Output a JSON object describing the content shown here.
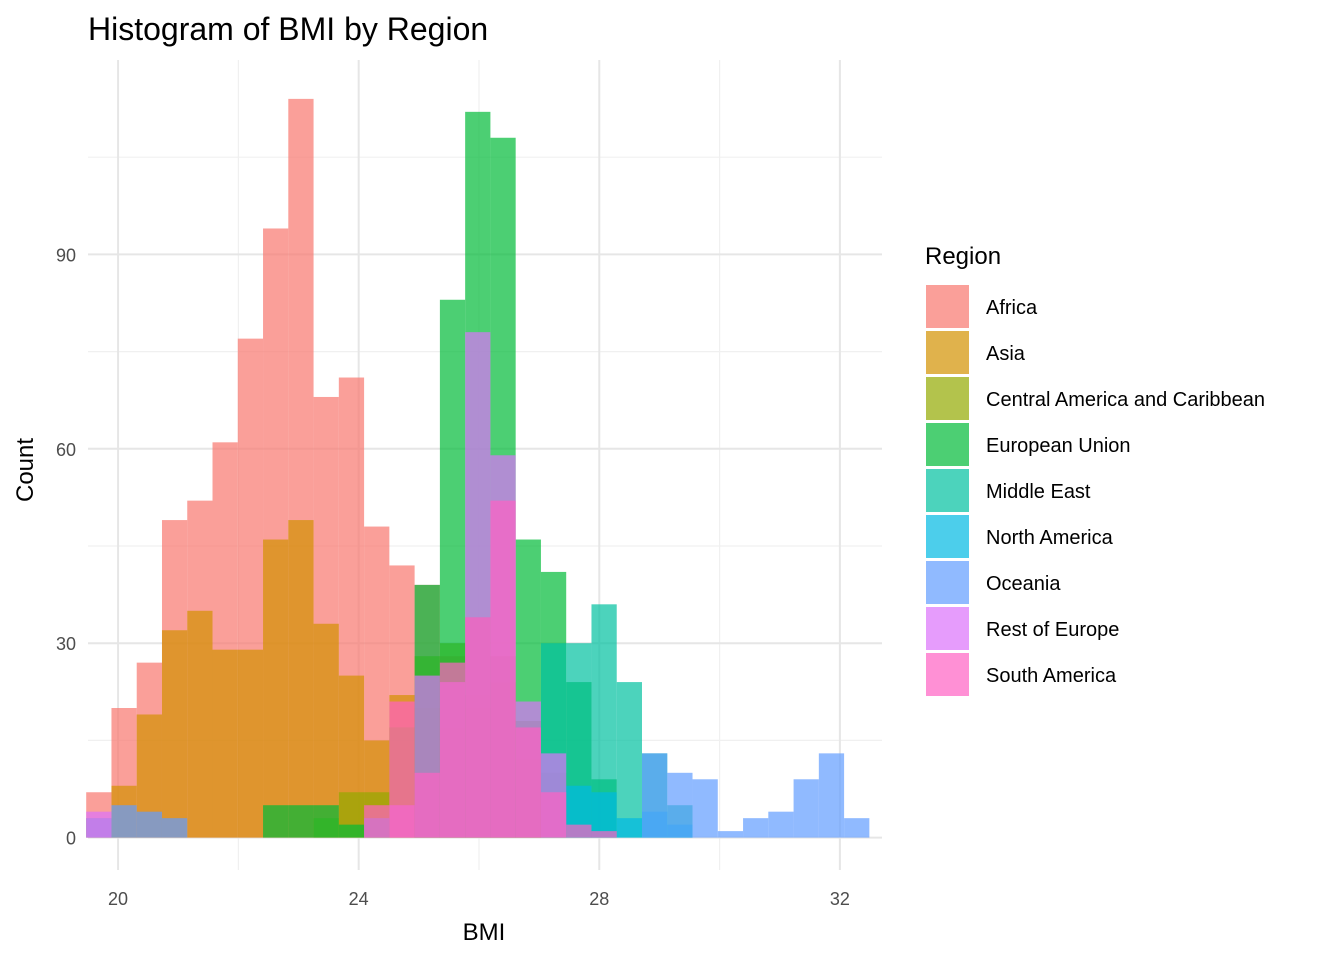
{
  "chart_data": {
    "type": "bar",
    "subtype": "overlaid-histogram",
    "title": "Histogram of BMI by Region",
    "xlabel": "BMI",
    "ylabel": "Count",
    "xlim": [
      19.5,
      32.7
    ],
    "ylim": [
      -5,
      120
    ],
    "x_ticks": [
      20,
      24,
      28,
      32
    ],
    "y_ticks": [
      0,
      30,
      60,
      90
    ],
    "grid": true,
    "legend": {
      "title": "Region",
      "position": "right"
    },
    "bin_width": 0.42,
    "opacity": 0.7,
    "series": [
      {
        "name": "Africa",
        "color": "#F8766D",
        "bins": [
          [
            19.68,
            7
          ],
          [
            20.1,
            20
          ],
          [
            20.52,
            27
          ],
          [
            20.94,
            49
          ],
          [
            21.36,
            52
          ],
          [
            21.78,
            61
          ],
          [
            22.2,
            77
          ],
          [
            22.62,
            94
          ],
          [
            23.04,
            114
          ],
          [
            23.46,
            68
          ],
          [
            23.88,
            71
          ],
          [
            24.3,
            48
          ],
          [
            24.72,
            42
          ],
          [
            25.14,
            39
          ],
          [
            25.56,
            28
          ],
          [
            25.98,
            22
          ],
          [
            26.4,
            18
          ],
          [
            26.82,
            8
          ]
        ]
      },
      {
        "name": "Asia",
        "color": "#D39200",
        "bins": [
          [
            19.68,
            3
          ],
          [
            20.1,
            8
          ],
          [
            20.52,
            19
          ],
          [
            20.94,
            32
          ],
          [
            21.36,
            35
          ],
          [
            21.78,
            29
          ],
          [
            22.2,
            29
          ],
          [
            22.62,
            46
          ],
          [
            23.04,
            49
          ],
          [
            23.46,
            33
          ],
          [
            23.88,
            25
          ],
          [
            24.3,
            15
          ],
          [
            24.72,
            22
          ],
          [
            25.14,
            20
          ],
          [
            25.56,
            17
          ],
          [
            25.98,
            20
          ],
          [
            26.4,
            24
          ],
          [
            26.82,
            12
          ]
        ]
      },
      {
        "name": "Central America and Caribbean",
        "color": "#93AA00",
        "bins": [
          [
            23.46,
            3
          ],
          [
            23.88,
            7
          ],
          [
            24.3,
            7
          ],
          [
            24.72,
            17
          ],
          [
            25.14,
            28
          ],
          [
            25.56,
            30
          ],
          [
            25.98,
            34
          ],
          [
            26.4,
            28
          ],
          [
            26.82,
            18
          ],
          [
            27.24,
            10
          ]
        ]
      },
      {
        "name": "European Union",
        "color": "#00BA38",
        "bins": [
          [
            22.62,
            5
          ],
          [
            23.04,
            5
          ],
          [
            23.46,
            5
          ],
          [
            23.88,
            2
          ],
          [
            25.14,
            39
          ],
          [
            25.56,
            83
          ],
          [
            25.98,
            112
          ],
          [
            26.4,
            108
          ],
          [
            26.82,
            46
          ],
          [
            27.24,
            41
          ],
          [
            27.66,
            24
          ],
          [
            28.08,
            9
          ]
        ]
      },
      {
        "name": "Middle East",
        "color": "#00C19F",
        "bins": [
          [
            27.24,
            30
          ],
          [
            27.66,
            30
          ],
          [
            28.08,
            36
          ],
          [
            28.5,
            24
          ],
          [
            28.92,
            13
          ],
          [
            29.34,
            5
          ]
        ]
      },
      {
        "name": "North America",
        "color": "#00B9E3",
        "bins": [
          [
            27.66,
            8
          ],
          [
            28.08,
            7
          ],
          [
            28.5,
            3
          ],
          [
            28.92,
            4
          ],
          [
            29.34,
            2
          ]
        ]
      },
      {
        "name": "Oceania",
        "color": "#619CFF",
        "bins": [
          [
            19.68,
            3
          ],
          [
            20.1,
            5
          ],
          [
            20.52,
            4
          ],
          [
            20.94,
            3
          ],
          [
            24.3,
            3
          ],
          [
            28.92,
            13
          ],
          [
            29.34,
            10
          ],
          [
            29.76,
            9
          ],
          [
            30.18,
            1
          ],
          [
            30.6,
            3
          ],
          [
            31.02,
            4
          ],
          [
            31.44,
            9
          ],
          [
            31.86,
            13
          ],
          [
            32.28,
            3
          ]
        ]
      },
      {
        "name": "Rest of Europe",
        "color": "#DB72FB",
        "bins": [
          [
            19.68,
            4
          ],
          [
            24.72,
            5
          ],
          [
            25.14,
            25
          ],
          [
            25.56,
            24
          ],
          [
            25.98,
            78
          ],
          [
            26.4,
            59
          ],
          [
            26.82,
            21
          ],
          [
            27.24,
            13
          ]
        ]
      },
      {
        "name": "South America",
        "color": "#FF61C3",
        "bins": [
          [
            24.3,
            5
          ],
          [
            24.72,
            21
          ],
          [
            25.14,
            10
          ],
          [
            25.56,
            27
          ],
          [
            25.98,
            34
          ],
          [
            26.4,
            52
          ],
          [
            26.82,
            17
          ],
          [
            27.24,
            7
          ],
          [
            27.66,
            2
          ],
          [
            28.08,
            1
          ]
        ]
      }
    ]
  }
}
